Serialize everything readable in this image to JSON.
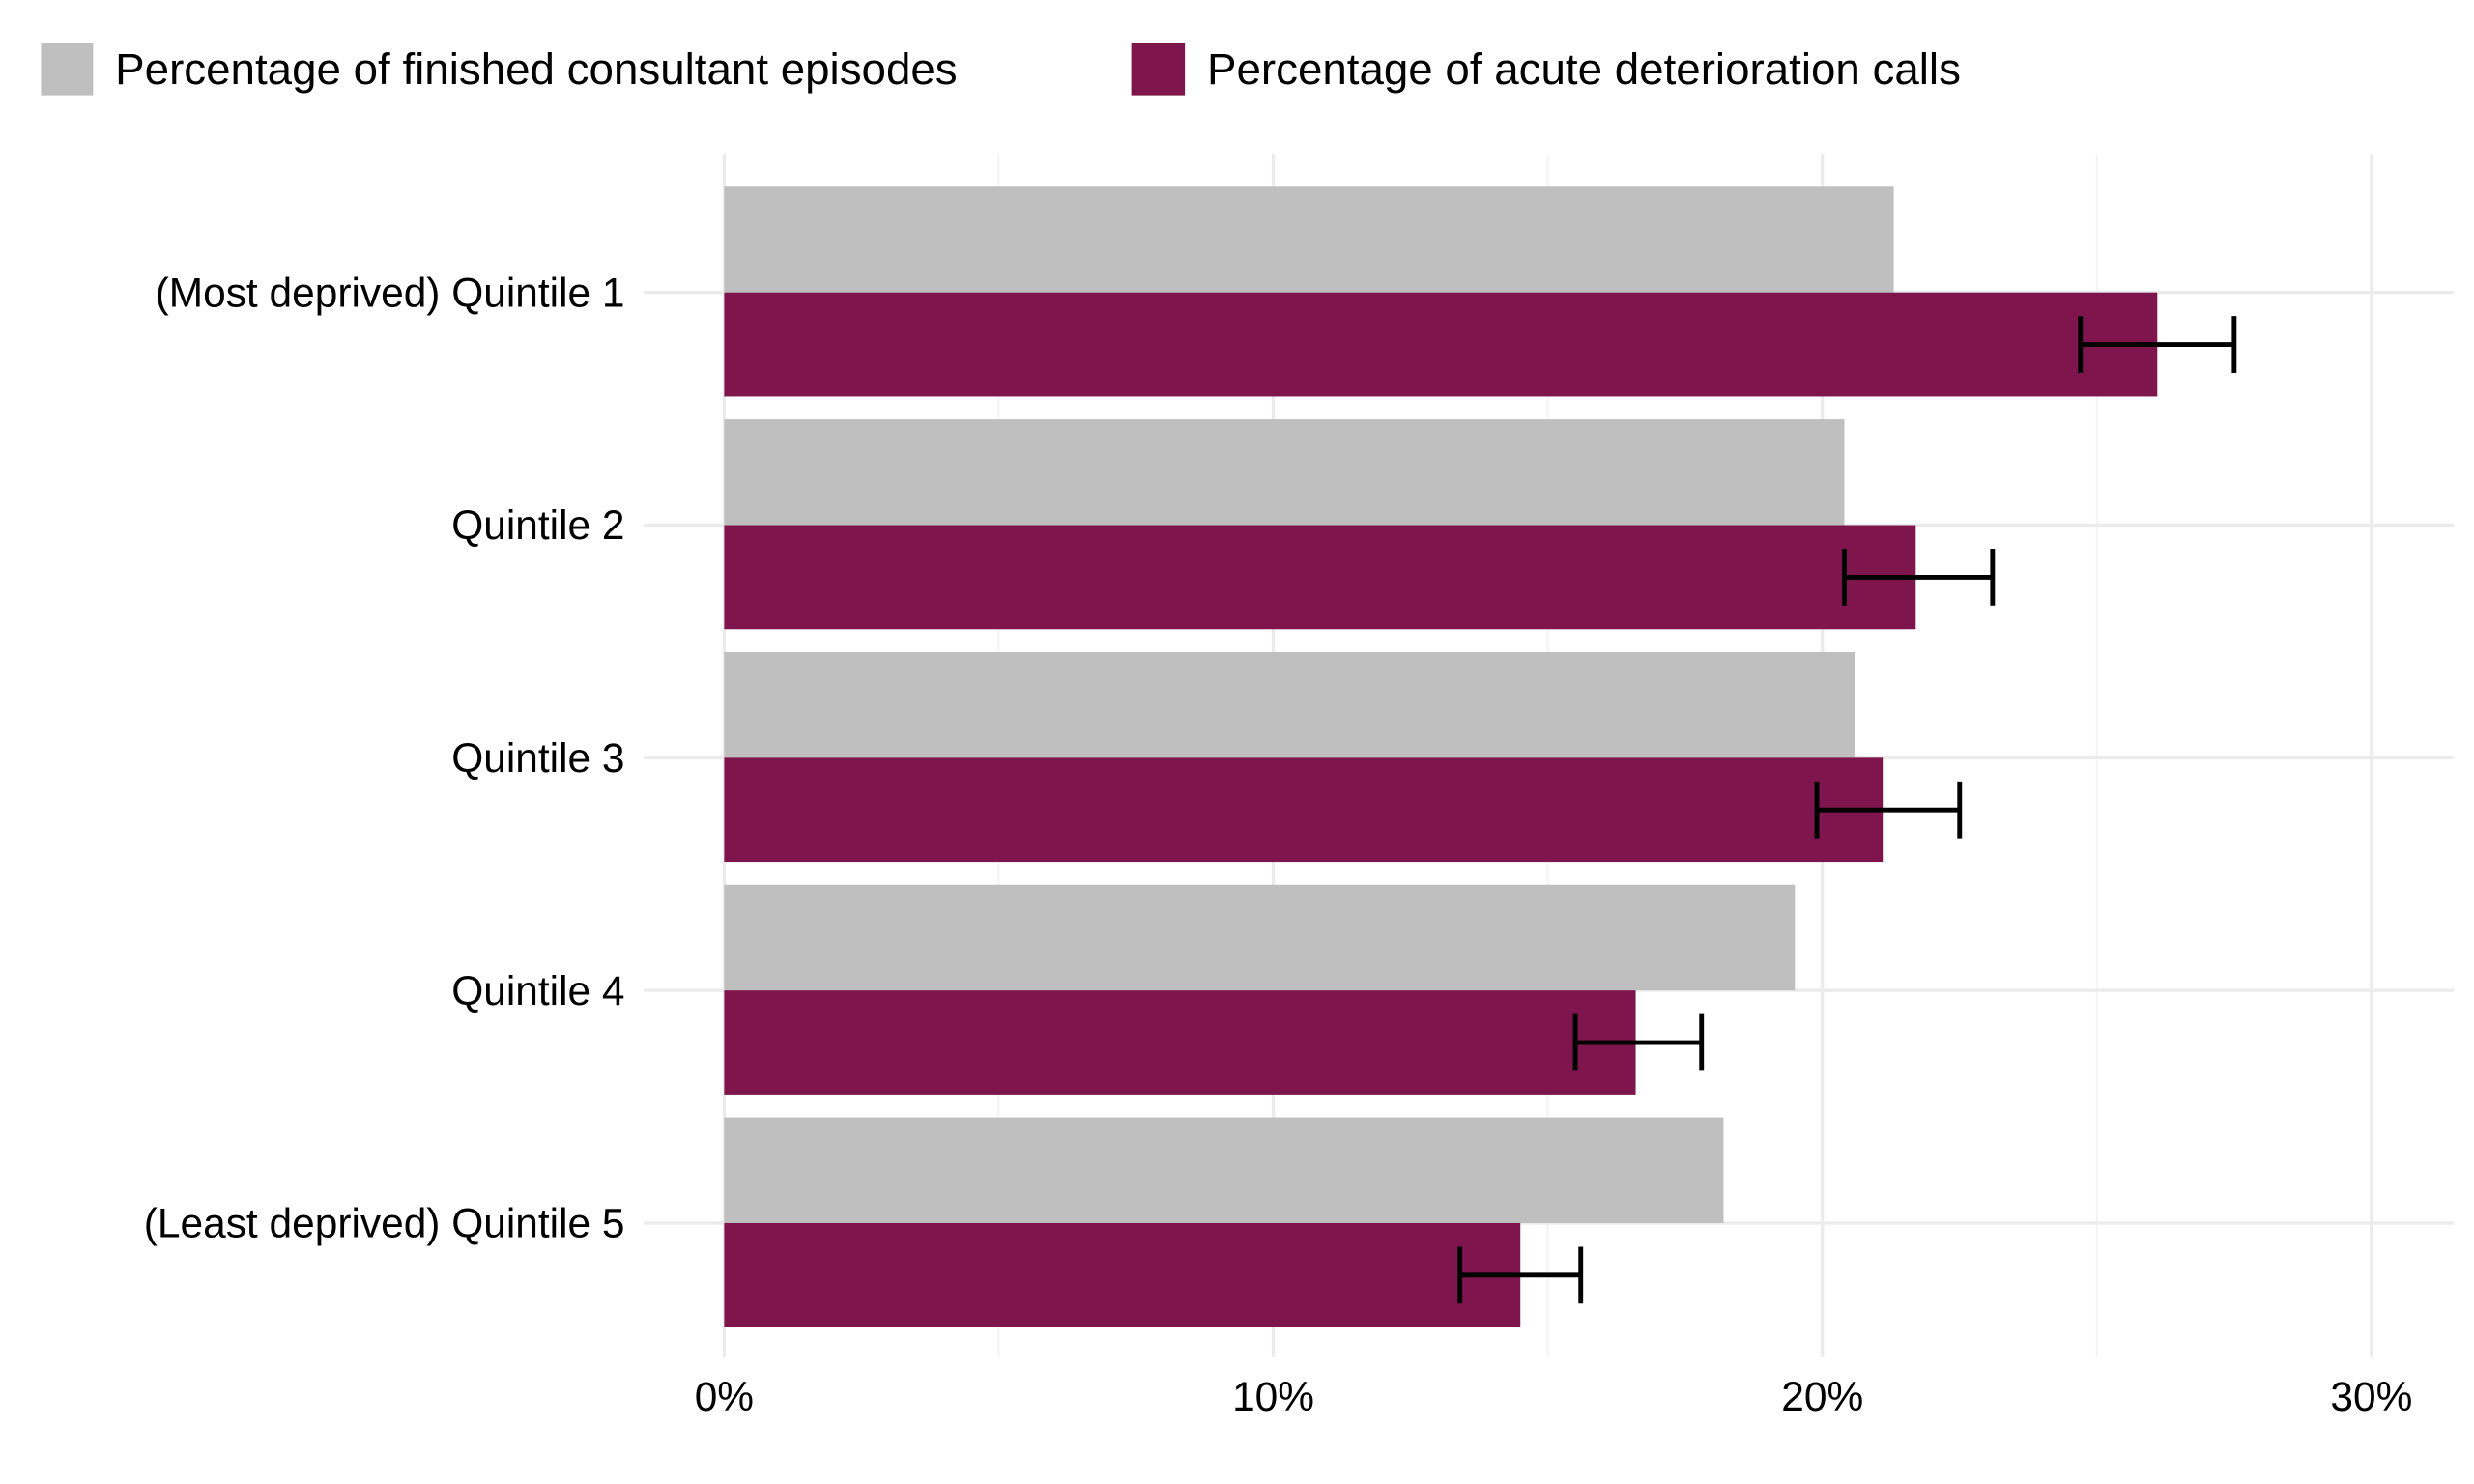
{
  "chart_data": {
    "type": "bar",
    "orientation": "horizontal",
    "title": "",
    "xlabel": "",
    "ylabel": "",
    "xlim": [
      0,
      31.5
    ],
    "x_ticks": [
      0,
      10,
      20,
      30
    ],
    "x_tick_labels": [
      "0%",
      "10%",
      "20%",
      "30%"
    ],
    "grid": true,
    "legend_position": "top-left",
    "categories": [
      "(Most deprived) Quintile 1",
      "Quintile 2",
      "Quintile 3",
      "Quintile 4",
      "(Least deprived) Quintile 5"
    ],
    "series": [
      {
        "name": "Percentage of finished consultant episodes",
        "color": "#bfbfbf",
        "values": [
          21.3,
          20.4,
          20.6,
          19.5,
          18.2
        ]
      },
      {
        "name": "Percentage of acute deterioration calls",
        "color": "#7e164d",
        "values": [
          26.1,
          21.7,
          21.1,
          16.6,
          14.5
        ],
        "error_low": [
          24.7,
          20.4,
          19.9,
          15.5,
          13.4
        ],
        "error_high": [
          27.5,
          23.1,
          22.5,
          17.8,
          15.6
        ]
      }
    ]
  }
}
